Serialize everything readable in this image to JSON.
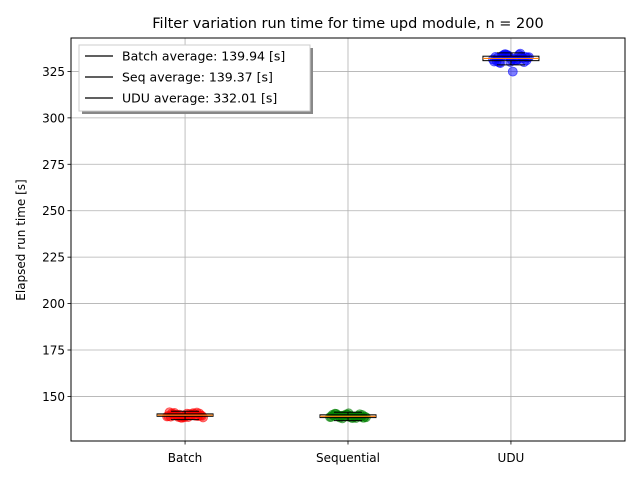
{
  "chart_data": {
    "type": "scatter",
    "title": "Filter variation run time for time upd module, n = 200",
    "xlabel": "",
    "ylabel": "Elapsed run time [s]",
    "categories": [
      "Batch",
      "Sequential",
      "UDU"
    ],
    "ylim": [
      126,
      343
    ],
    "yticks": [
      150,
      175,
      200,
      225,
      250,
      275,
      300,
      325
    ],
    "grid": true,
    "legend": {
      "placement": "top-left",
      "entries": [
        "Batch average: 139.94 [s]",
        "Seq average: 139.37 [s]",
        "UDU average: 332.01 [s]"
      ]
    },
    "series": [
      {
        "category": "Batch",
        "color": "#ff0000",
        "average": 139.94,
        "box": {
          "q1": 139.3,
          "median": 139.9,
          "q3": 140.6,
          "whisker_low": 137.5,
          "whisker_high": 142.0
        },
        "values": [
          139.2,
          140.1,
          138.8,
          141.0,
          139.6,
          140.4,
          138.5,
          139.9,
          140.8,
          139.1,
          140.2,
          138.9,
          141.3,
          139.5,
          140.0,
          139.7,
          140.6,
          138.7,
          141.1,
          139.3,
          140.3,
          139.8,
          140.9,
          138.6,
          140.5,
          139.4,
          141.5,
          139.0,
          140.7,
          139.6
        ]
      },
      {
        "category": "Sequential",
        "color": "#008000",
        "average": 139.37,
        "box": {
          "q1": 138.6,
          "median": 139.3,
          "q3": 140.1,
          "whisker_low": 137.0,
          "whisker_high": 141.5
        },
        "values": [
          138.9,
          139.6,
          140.2,
          138.4,
          139.1,
          140.6,
          139.3,
          138.7,
          140.0,
          139.8,
          138.2,
          139.5,
          140.4,
          139.0,
          138.6,
          140.9,
          139.4,
          138.8,
          139.9,
          140.3,
          139.2,
          138.5,
          140.7,
          139.7,
          138.3,
          139.0,
          140.1,
          139.6,
          138.9,
          139.5
        ]
      },
      {
        "category": "UDU",
        "color": "#0000ff",
        "average": 332.01,
        "box": {
          "q1": 330.8,
          "median": 332.0,
          "q3": 333.2,
          "whisker_low": 328.5,
          "whisker_high": 335.0
        },
        "values": [
          331.5,
          333.2,
          330.1,
          334.0,
          332.4,
          329.8,
          333.7,
          331.0,
          332.9,
          330.6,
          334.3,
          331.8,
          332.2,
          330.3,
          333.5,
          331.3,
          334.6,
          332.7,
          329.5,
          333.0,
          331.6,
          330.9,
          332.5,
          333.9,
          331.2,
          330.0,
          332.8,
          334.1,
          324.9,
          333.1
        ]
      }
    ]
  }
}
